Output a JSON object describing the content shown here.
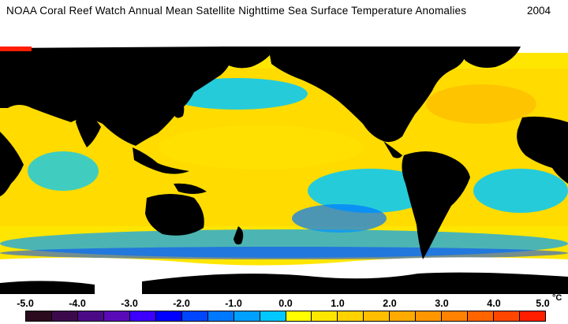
{
  "title": "NOAA Coral Reef Watch Annual Mean Satellite Nighttime Sea Surface Temperature Anomalies",
  "year": "2004",
  "legend": {
    "ticks": [
      "-5.0",
      "-4.0",
      "-3.0",
      "-2.0",
      "-1.0",
      "0.0",
      "1.0",
      "2.0",
      "3.0",
      "4.0",
      "5.0"
    ],
    "unit": "°C",
    "colors": [
      "#2a0a1c",
      "#3c0a4c",
      "#4b0a86",
      "#5a0ab8",
      "#3c00ff",
      "#0000ff",
      "#0046ff",
      "#0078ff",
      "#00a0ff",
      "#00c8ff",
      "#ffff00",
      "#ffe600",
      "#ffd200",
      "#ffbe00",
      "#ffaa00",
      "#ff9600",
      "#ff8200",
      "#ff6400",
      "#ff4600",
      "#ff1e00"
    ]
  },
  "colors": {
    "land": "#000000",
    "ice": "#ffffff",
    "ocean_warm": "#ffd700",
    "ocean_neutral": "#ffff00",
    "ocean_cool": "#00c8ff"
  }
}
